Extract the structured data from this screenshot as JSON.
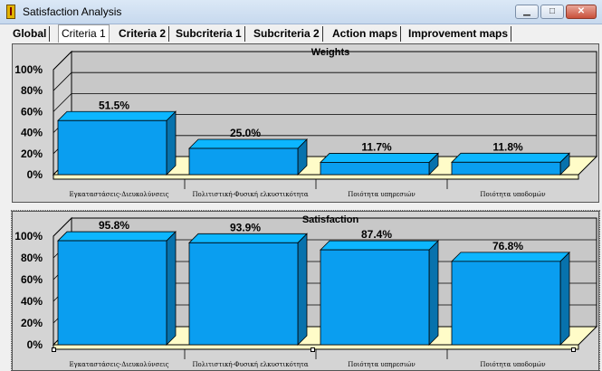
{
  "window": {
    "title": "Satisfaction Analysis",
    "min_glyph": "▁",
    "max_glyph": "□",
    "close_glyph": "✕",
    "icon": "app-icon"
  },
  "tabs": [
    {
      "label": "Global",
      "active": false
    },
    {
      "label": "Criteria 1",
      "active": true
    },
    {
      "label": "Criteria 2",
      "active": false
    },
    {
      "label": "Subcriteria 1",
      "active": false
    },
    {
      "label": "Subcriteria 2",
      "active": false
    },
    {
      "label": "Action maps",
      "active": false
    },
    {
      "label": "Improvement maps",
      "active": false
    }
  ],
  "chart_data": [
    {
      "type": "bar",
      "title": "Weights",
      "categories": [
        "Εγκαταστάσεις-Διευκολύνσεις",
        "Πολιτιστική-Φυσική ελκυστικότητα",
        "Ποιότητα υπηρεσιών",
        "Ποιότητα υποδομών"
      ],
      "values": [
        51.5,
        25.0,
        11.7,
        11.8
      ],
      "value_labels": [
        "51.5%",
        "25.0%",
        "11.7%",
        "11.8%"
      ],
      "yticks": [
        "0%",
        "20%",
        "40%",
        "60%",
        "80%",
        "100%"
      ],
      "ylim": [
        0,
        100
      ],
      "bar_color": "#0a9ef0",
      "floor_color": "#fffcc8",
      "wall_color": "#c8c8c8"
    },
    {
      "type": "bar",
      "title": "Satisfaction",
      "categories": [
        "Εγκαταστάσεις-Διευκολύνσεις",
        "Πολιτιστική-Φυσική ελκυστικότητα",
        "Ποιότητα υπηρεσιών",
        "Ποιότητα υποδομών"
      ],
      "values": [
        95.8,
        93.9,
        87.4,
        76.8
      ],
      "value_labels": [
        "95.8%",
        "93.9%",
        "87.4%",
        "76.8%"
      ],
      "yticks": [
        "0%",
        "20%",
        "40%",
        "60%",
        "80%",
        "100%"
      ],
      "ylim": [
        0,
        100
      ],
      "bar_color": "#0a9ef0",
      "floor_color": "#fffcc8",
      "wall_color": "#c8c8c8"
    }
  ]
}
